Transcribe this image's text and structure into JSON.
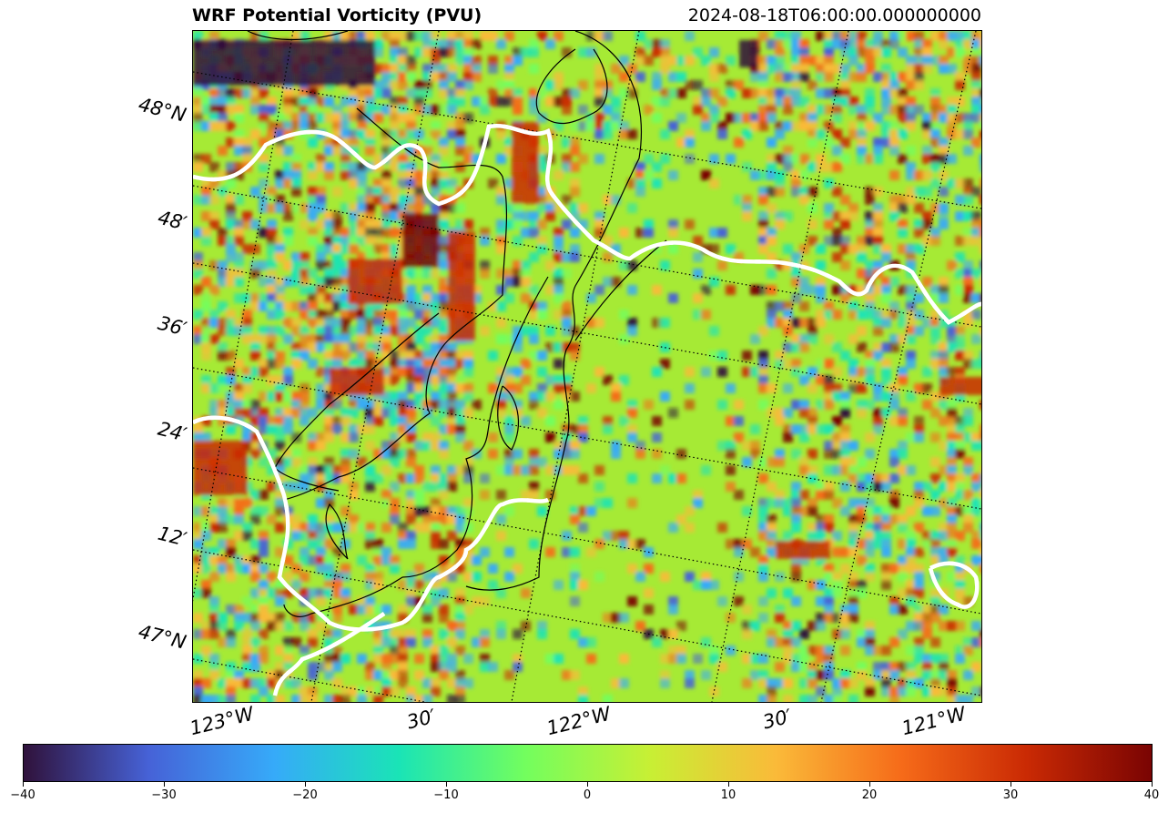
{
  "header": {
    "title": "WRF Potential Vorticity (PVU)",
    "timestamp": "2024-08-18T06:00:00.000000000"
  },
  "map": {
    "variable": "Potential Vorticity",
    "units": "PVU",
    "projection": "rotated lat-lon grid",
    "gridlines": "dotted",
    "coastline_style": "white-black dashed",
    "contour_color": "#000000",
    "lat_labels": [
      "48°N",
      "48′",
      "36′",
      "24′",
      "12′",
      "47°N"
    ],
    "lon_labels": [
      "123°W",
      "30′",
      "122°W",
      "30′",
      "121°W"
    ]
  },
  "colorbar": {
    "colormap": "turbo",
    "min": -40,
    "max": 40,
    "ticks": [
      "−40",
      "−30",
      "−20",
      "−10",
      "0",
      "10",
      "20",
      "30",
      "40"
    ],
    "colors": [
      "#30123b",
      "#4662d7",
      "#36aaf9",
      "#1ae4b6",
      "#72fe5e",
      "#c8ef34",
      "#faba39",
      "#f66b19",
      "#ca2a04",
      "#7a0403"
    ]
  }
}
